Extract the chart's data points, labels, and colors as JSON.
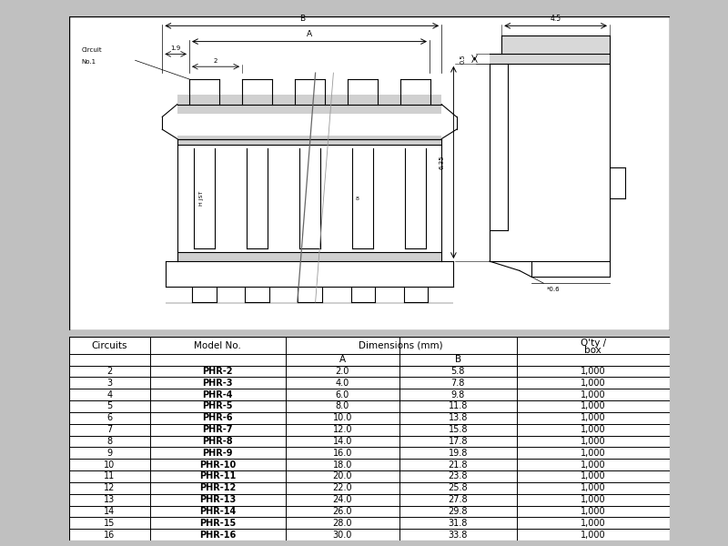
{
  "bg_color": "#c0c0c0",
  "drawing_bg": "#ffffff",
  "table_bg": "#ffffff",
  "table_rows": [
    [
      2,
      "PHR-2",
      "2.0",
      "5.8",
      "1,000"
    ],
    [
      3,
      "PHR-3",
      "4.0",
      "7.8",
      "1,000"
    ],
    [
      4,
      "PHR-4",
      "6.0",
      "9.8",
      "1,000"
    ],
    [
      5,
      "PHR-5",
      "8.0",
      "11.8",
      "1,000"
    ],
    [
      6,
      "PHR-6",
      "10.0",
      "13.8",
      "1,000"
    ],
    [
      7,
      "PHR-7",
      "12.0",
      "15.8",
      "1,000"
    ],
    [
      8,
      "PHR-8",
      "14.0",
      "17.8",
      "1,000"
    ],
    [
      9,
      "PHR-9",
      "16.0",
      "19.8",
      "1,000"
    ],
    [
      10,
      "PHR-10",
      "18.0",
      "21.8",
      "1,000"
    ],
    [
      11,
      "PHR-11",
      "20.0",
      "23.8",
      "1,000"
    ],
    [
      12,
      "PHR-12",
      "22.0",
      "25.8",
      "1,000"
    ],
    [
      13,
      "PHR-13",
      "24.0",
      "27.8",
      "1,000"
    ],
    [
      14,
      "PHR-14",
      "26.0",
      "29.8",
      "1,000"
    ],
    [
      15,
      "PHR-15",
      "28.0",
      "31.8",
      "1,000"
    ],
    [
      16,
      "PHR-16",
      "30.0",
      "33.8",
      "1,000"
    ]
  ]
}
